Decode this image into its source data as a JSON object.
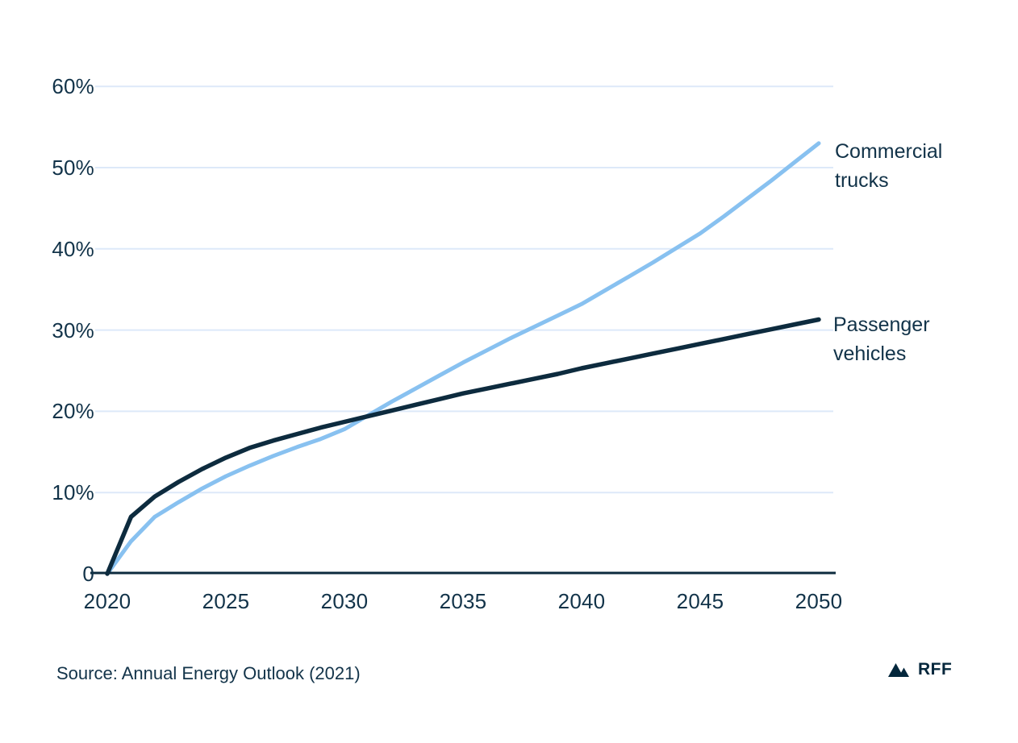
{
  "page": {
    "background": "#ffffff"
  },
  "chart_data": {
    "type": "line",
    "title": "",
    "xlabel": "",
    "ylabel": "",
    "xlim": [
      2020,
      2050
    ],
    "ylim": [
      0,
      60
    ],
    "grid": "horizontal",
    "legend_position": "labels-at-line-ends",
    "x": [
      2020,
      2021,
      2022,
      2023,
      2024,
      2025,
      2026,
      2027,
      2028,
      2029,
      2030,
      2031,
      2032,
      2033,
      2034,
      2035,
      2036,
      2037,
      2038,
      2039,
      2040,
      2041,
      2042,
      2043,
      2044,
      2045,
      2046,
      2047,
      2048,
      2049,
      2050
    ],
    "series": [
      {
        "name": "Commercial trucks",
        "color": "#88c1f0",
        "values": [
          0,
          4.0,
          7.0,
          8.8,
          10.5,
          12.0,
          13.3,
          14.5,
          15.6,
          16.6,
          17.8,
          19.5,
          21.2,
          22.8,
          24.4,
          26.0,
          27.5,
          29.0,
          30.4,
          31.8,
          33.2,
          34.9,
          36.6,
          38.3,
          40.1,
          41.9,
          44.0,
          46.2,
          48.4,
          50.7,
          53.0
        ]
      },
      {
        "name": "Passenger vehicles",
        "color": "#0d2b3e",
        "values": [
          0,
          7.0,
          9.5,
          11.3,
          12.9,
          14.3,
          15.5,
          16.4,
          17.2,
          18.0,
          18.7,
          19.4,
          20.1,
          20.8,
          21.5,
          22.2,
          22.8,
          23.4,
          24.0,
          24.6,
          25.3,
          25.9,
          26.5,
          27.1,
          27.7,
          28.3,
          28.9,
          29.5,
          30.1,
          30.7,
          31.3
        ]
      }
    ],
    "y_ticks": [
      {
        "value": 0,
        "label": "0"
      },
      {
        "value": 10,
        "label": "10%"
      },
      {
        "value": 20,
        "label": "20%"
      },
      {
        "value": 30,
        "label": "30%"
      },
      {
        "value": 40,
        "label": "40%"
      },
      {
        "value": 50,
        "label": "50%"
      },
      {
        "value": 60,
        "label": "60%"
      }
    ],
    "x_ticks": [
      {
        "value": 2020,
        "label": "2020"
      },
      {
        "value": 2025,
        "label": "2025"
      },
      {
        "value": 2030,
        "label": "2030"
      },
      {
        "value": 2035,
        "label": "2035"
      },
      {
        "value": 2040,
        "label": "2040"
      },
      {
        "value": 2045,
        "label": "2045"
      },
      {
        "value": 2050,
        "label": "2050"
      }
    ],
    "colors": {
      "gridline": "#dde9f9",
      "axis": "#0d2b3e",
      "text": "#123349"
    }
  },
  "footer": {
    "source": "Source: Annual Energy Outlook (2021)",
    "logo_text": "RFF"
  }
}
